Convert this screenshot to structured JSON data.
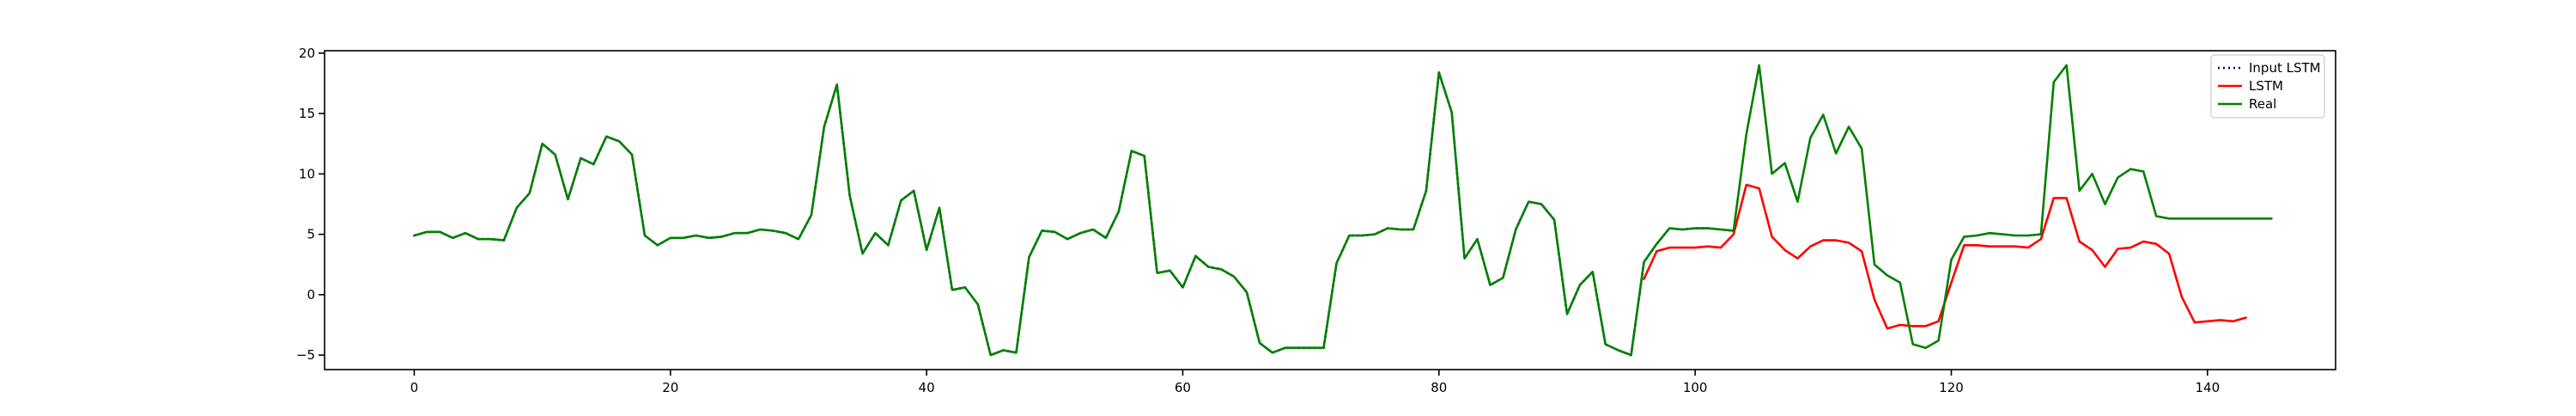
{
  "chart_data": {
    "type": "line",
    "title": "",
    "xlabel": "",
    "ylabel": "",
    "xlim": [
      -7,
      150
    ],
    "ylim": [
      -6.2,
      20.2
    ],
    "x_ticks": [
      0,
      20,
      40,
      60,
      80,
      100,
      120,
      140
    ],
    "y_ticks": [
      -5,
      0,
      5,
      10,
      15,
      20
    ],
    "grid": false,
    "legend_position": "top-right",
    "series": [
      {
        "name": "Input LSTM",
        "color": "#000080",
        "style": "dotted",
        "x_start": 0,
        "values": [
          4.9,
          5.2,
          5.2,
          4.7,
          5.1,
          4.6,
          4.6,
          4.5,
          7.2,
          8.4,
          12.5,
          11.6,
          7.9,
          11.3,
          10.8,
          13.1,
          12.7,
          11.6,
          4.9,
          4.1,
          4.7,
          4.7,
          4.9,
          4.7,
          4.8,
          5.1,
          5.1,
          5.4,
          5.3,
          5.1,
          4.6,
          6.6,
          13.9,
          17.4,
          8.2,
          3.4,
          5.1,
          4.1,
          7.8,
          8.6,
          3.7,
          7.2,
          0.4,
          0.6,
          -0.8,
          -5.0,
          -4.6,
          -4.8,
          3.1,
          5.3,
          5.2,
          4.6,
          5.1,
          5.4,
          4.7,
          6.9,
          11.9,
          11.5,
          1.8,
          2.0,
          0.6,
          3.2,
          2.3,
          2.1,
          1.5,
          0.2,
          -4.0,
          -4.8,
          -4.4,
          -4.4,
          -4.4,
          -4.4,
          2.6,
          4.9,
          4.9,
          5.0,
          5.5,
          5.4,
          5.4,
          8.6,
          18.4,
          15.1,
          3.0,
          4.6,
          0.8,
          1.4,
          5.4,
          7.7,
          7.5,
          6.2,
          -1.6,
          0.8,
          1.9,
          -4.1,
          -4.6,
          -5.0,
          2.7,
          4.2,
          5.5,
          5.4,
          5.5,
          5.5,
          5.4,
          5.3
        ]
      },
      {
        "name": "LSTM",
        "color": "#ff0000",
        "style": "solid",
        "x_start": 96,
        "values": [
          1.3,
          3.6,
          3.9,
          3.9,
          3.9,
          4.0,
          3.9,
          5.0,
          9.1,
          8.8,
          4.8,
          3.7,
          3.0,
          4.0,
          4.5,
          4.5,
          4.3,
          3.6,
          -0.4,
          -2.8,
          -2.5,
          -2.6,
          -2.6,
          -2.2,
          1.0,
          4.1,
          4.1,
          4.0,
          4.0,
          4.0,
          3.9,
          4.6,
          8.0,
          8.0,
          4.4,
          3.7,
          2.3,
          3.8,
          3.9,
          4.4,
          4.2,
          3.4,
          -0.2,
          -2.3,
          -2.2,
          -2.1,
          -2.2,
          -1.9
        ]
      },
      {
        "name": "Real",
        "color": "#008000",
        "style": "solid",
        "x_start": 0,
        "values": [
          4.9,
          5.2,
          5.2,
          4.7,
          5.1,
          4.6,
          4.6,
          4.5,
          7.2,
          8.4,
          12.5,
          11.6,
          7.9,
          11.3,
          10.8,
          13.1,
          12.7,
          11.6,
          4.9,
          4.1,
          4.7,
          4.7,
          4.9,
          4.7,
          4.8,
          5.1,
          5.1,
          5.4,
          5.3,
          5.1,
          4.6,
          6.6,
          13.9,
          17.4,
          8.2,
          3.4,
          5.1,
          4.1,
          7.8,
          8.6,
          3.7,
          7.2,
          0.4,
          0.6,
          -0.8,
          -5.0,
          -4.6,
          -4.8,
          3.1,
          5.3,
          5.2,
          4.6,
          5.1,
          5.4,
          4.7,
          6.9,
          11.9,
          11.5,
          1.8,
          2.0,
          0.6,
          3.2,
          2.3,
          2.1,
          1.5,
          0.2,
          -4.0,
          -4.8,
          -4.4,
          -4.4,
          -4.4,
          -4.4,
          2.6,
          4.9,
          4.9,
          5.0,
          5.5,
          5.4,
          5.4,
          8.6,
          18.4,
          15.1,
          3.0,
          4.6,
          0.8,
          1.4,
          5.4,
          7.7,
          7.5,
          6.2,
          -1.6,
          0.8,
          1.9,
          -4.1,
          -4.6,
          -5.0,
          2.7,
          4.2,
          5.5,
          5.4,
          5.5,
          5.5,
          5.4,
          5.3,
          13.3,
          19.0,
          10.0,
          10.9,
          7.7,
          13.0,
          14.9,
          11.7,
          13.9,
          12.1,
          2.5,
          1.6,
          1.0,
          -4.1,
          -4.4,
          -3.8,
          2.9,
          4.8,
          4.9,
          5.1,
          5.0,
          4.9,
          4.9,
          5.0,
          17.6,
          19.0,
          8.6,
          10.0,
          7.5,
          9.7,
          10.4,
          10.2,
          6.5,
          6.3,
          6.3,
          6.3,
          6.3,
          6.3,
          6.3,
          6.3,
          6.3,
          6.3
        ]
      }
    ]
  }
}
